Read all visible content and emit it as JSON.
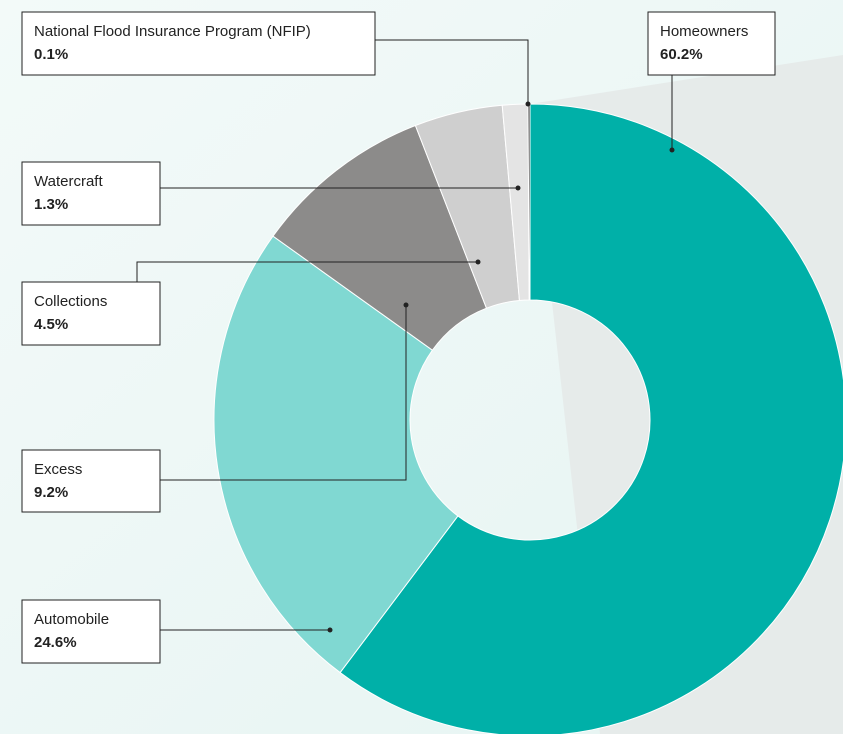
{
  "chart_data": {
    "type": "donut",
    "categories": [
      "Homeowners",
      "Automobile",
      "Excess",
      "Collections",
      "Watercraft",
      "National Flood Insurance Program (NFIP)"
    ],
    "values": [
      60.2,
      24.6,
      9.2,
      4.5,
      1.3,
      0.1
    ],
    "value_labels": [
      "60.2%",
      "24.6%",
      "9.2%",
      "4.5%",
      "1.3%",
      "0.1%"
    ],
    "colors": [
      "#00b0a8",
      "#80d8d2",
      "#8c8b8a",
      "#cfcfcf",
      "#e4e4e4",
      "#222222"
    ]
  }
}
